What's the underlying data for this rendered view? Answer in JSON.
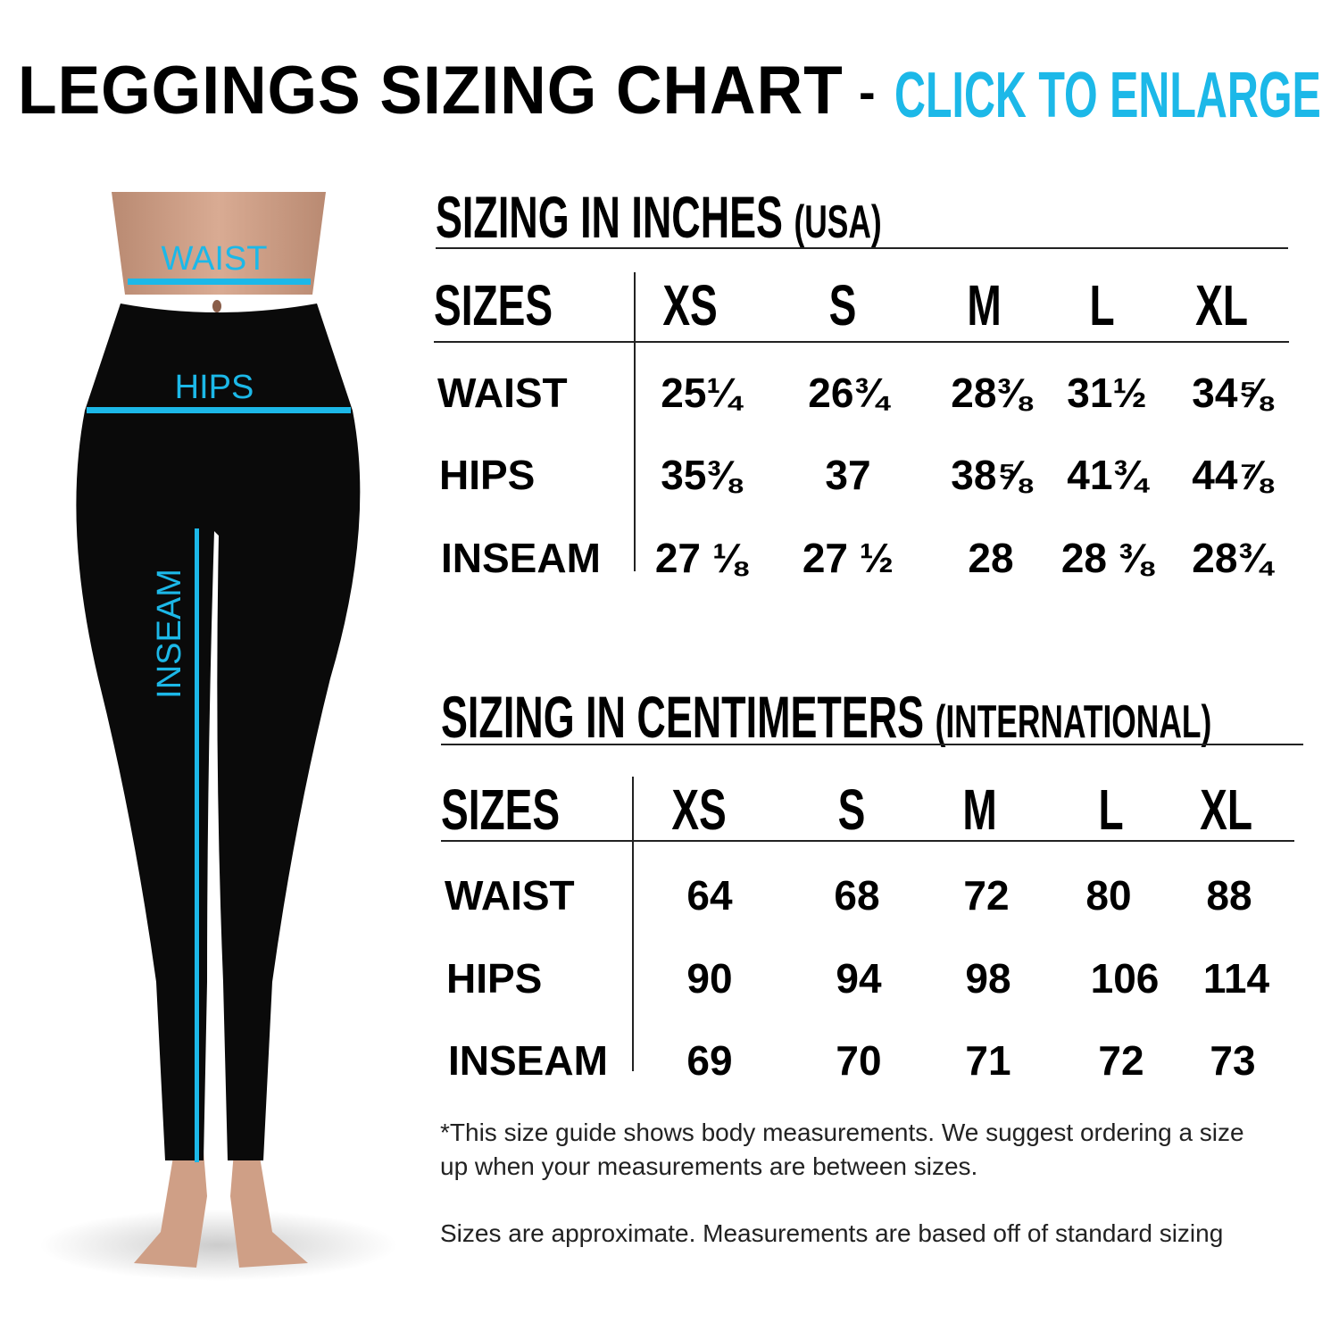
{
  "header": {
    "title": "LEGGINGS SIZING CHART",
    "separator": "-",
    "cta": "CLICK TO ENLARGE"
  },
  "colors": {
    "accent": "#1cb8e8",
    "text": "#000000"
  },
  "figure": {
    "labels": {
      "waist": "WAIST",
      "hips": "HIPS",
      "inseam": "INSEAM"
    }
  },
  "inches": {
    "title": "SIZING IN INCHES",
    "subtitle": "(USA)",
    "columns": [
      "SIZES",
      "XS",
      "S",
      "M",
      "L",
      "XL"
    ],
    "rows": [
      {
        "label": "WAIST",
        "values": [
          "25¼",
          "26¾",
          "28⅜",
          "31½",
          "34⅝"
        ]
      },
      {
        "label": "HIPS",
        "values": [
          "35⅜",
          "37",
          "38⅝",
          "41¾",
          "44⅞"
        ]
      },
      {
        "label": "INSEAM",
        "values": [
          "27 ⅛",
          "27 ½",
          "28",
          "28 ⅜",
          "28¾"
        ]
      }
    ]
  },
  "centimeters": {
    "title": "SIZING IN CENTIMETERS",
    "subtitle": "(INTERNATIONAL)",
    "columns": [
      "SIZES",
      "XS",
      "S",
      "M",
      "L",
      "XL"
    ],
    "rows": [
      {
        "label": "WAIST",
        "values": [
          "64",
          "68",
          "72",
          "80",
          "88"
        ]
      },
      {
        "label": "HIPS",
        "values": [
          "90",
          "94",
          "98",
          "106",
          "114"
        ]
      },
      {
        "label": "INSEAM",
        "values": [
          "69",
          "70",
          "71",
          "72",
          "73"
        ]
      }
    ]
  },
  "notes": {
    "line1": "*This size guide shows body measurements. We suggest ordering a size",
    "line2": "up when your measurements are between sizes.",
    "line3": "Sizes are approximate. Measurements are based off of standard sizing"
  }
}
